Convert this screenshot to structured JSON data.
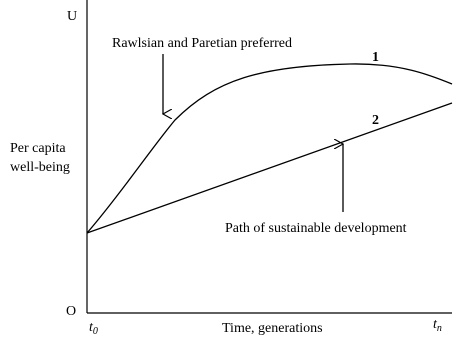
{
  "axes": {
    "y_top": "U",
    "origin": "O",
    "y_label": [
      "Per capita",
      "well-being"
    ],
    "x_label": "Time, generations",
    "x_start": {
      "base": "t",
      "sub": "0"
    },
    "x_end": {
      "base": "t",
      "sub": "n"
    }
  },
  "curves": [
    {
      "label": "1"
    },
    {
      "label": "2"
    }
  ],
  "annotations": [
    "Rawlsian and Paretian preferred",
    "Path of sustainable development"
  ]
}
